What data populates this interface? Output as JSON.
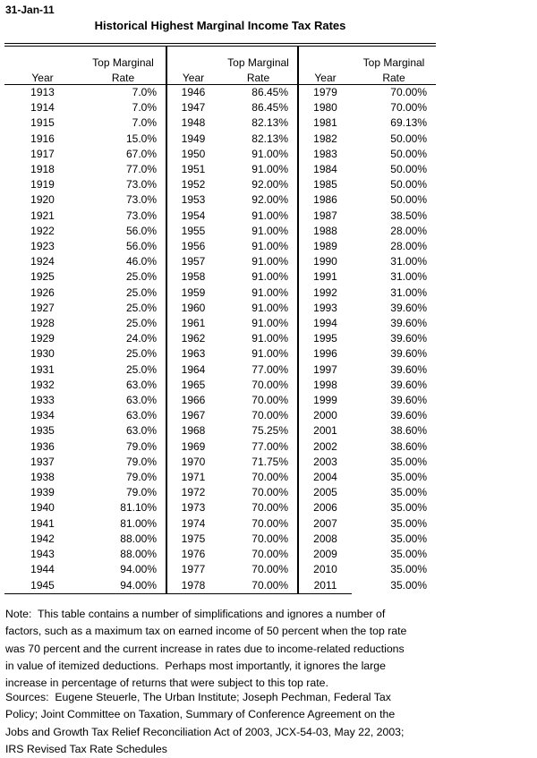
{
  "page": {
    "date": "31-Jan-11",
    "title": "Historical Highest Marginal Income Tax Rates"
  },
  "table": {
    "header_top_marginal": "Top Marginal",
    "header_year": "Year",
    "header_rate": "Rate",
    "groups": [
      {
        "rows": [
          [
            "1913",
            "7.0%"
          ],
          [
            "1914",
            "7.0%"
          ],
          [
            "1915",
            "7.0%"
          ],
          [
            "1916",
            "15.0%"
          ],
          [
            "1917",
            "67.0%"
          ],
          [
            "1918",
            "77.0%"
          ],
          [
            "1919",
            "73.0%"
          ],
          [
            "1920",
            "73.0%"
          ],
          [
            "1921",
            "73.0%"
          ],
          [
            "1922",
            "56.0%"
          ],
          [
            "1923",
            "56.0%"
          ],
          [
            "1924",
            "46.0%"
          ],
          [
            "1925",
            "25.0%"
          ],
          [
            "1926",
            "25.0%"
          ],
          [
            "1927",
            "25.0%"
          ],
          [
            "1928",
            "25.0%"
          ],
          [
            "1929",
            "24.0%"
          ],
          [
            "1930",
            "25.0%"
          ],
          [
            "1931",
            "25.0%"
          ],
          [
            "1932",
            "63.0%"
          ],
          [
            "1933",
            "63.0%"
          ],
          [
            "1934",
            "63.0%"
          ],
          [
            "1935",
            "63.0%"
          ],
          [
            "1936",
            "79.0%"
          ],
          [
            "1937",
            "79.0%"
          ],
          [
            "1938",
            "79.0%"
          ],
          [
            "1939",
            "79.0%"
          ],
          [
            "1940",
            "81.10%"
          ],
          [
            "1941",
            "81.00%"
          ],
          [
            "1942",
            "88.00%"
          ],
          [
            "1943",
            "88.00%"
          ],
          [
            "1944",
            "94.00%"
          ],
          [
            "1945",
            "94.00%"
          ]
        ]
      },
      {
        "rows": [
          [
            "1946",
            "86.45%"
          ],
          [
            "1947",
            "86.45%"
          ],
          [
            "1948",
            "82.13%"
          ],
          [
            "1949",
            "82.13%"
          ],
          [
            "1950",
            "91.00%"
          ],
          [
            "1951",
            "91.00%"
          ],
          [
            "1952",
            "92.00%"
          ],
          [
            "1953",
            "92.00%"
          ],
          [
            "1954",
            "91.00%"
          ],
          [
            "1955",
            "91.00%"
          ],
          [
            "1956",
            "91.00%"
          ],
          [
            "1957",
            "91.00%"
          ],
          [
            "1958",
            "91.00%"
          ],
          [
            "1959",
            "91.00%"
          ],
          [
            "1960",
            "91.00%"
          ],
          [
            "1961",
            "91.00%"
          ],
          [
            "1962",
            "91.00%"
          ],
          [
            "1963",
            "91.00%"
          ],
          [
            "1964",
            "77.00%"
          ],
          [
            "1965",
            "70.00%"
          ],
          [
            "1966",
            "70.00%"
          ],
          [
            "1967",
            "70.00%"
          ],
          [
            "1968",
            "75.25%"
          ],
          [
            "1969",
            "77.00%"
          ],
          [
            "1970",
            "71.75%"
          ],
          [
            "1971",
            "70.00%"
          ],
          [
            "1972",
            "70.00%"
          ],
          [
            "1973",
            "70.00%"
          ],
          [
            "1974",
            "70.00%"
          ],
          [
            "1975",
            "70.00%"
          ],
          [
            "1976",
            "70.00%"
          ],
          [
            "1977",
            "70.00%"
          ],
          [
            "1978",
            "70.00%"
          ]
        ]
      },
      {
        "rows": [
          [
            "1979",
            "70.00%"
          ],
          [
            "1980",
            "70.00%"
          ],
          [
            "1981",
            "69.13%"
          ],
          [
            "1982",
            "50.00%"
          ],
          [
            "1983",
            "50.00%"
          ],
          [
            "1984",
            "50.00%"
          ],
          [
            "1985",
            "50.00%"
          ],
          [
            "1986",
            "50.00%"
          ],
          [
            "1987",
            "38.50%"
          ],
          [
            "1988",
            "28.00%"
          ],
          [
            "1989",
            "28.00%"
          ],
          [
            "1990",
            "31.00%"
          ],
          [
            "1991",
            "31.00%"
          ],
          [
            "1992",
            "31.00%"
          ],
          [
            "1993",
            "39.60%"
          ],
          [
            "1994",
            "39.60%"
          ],
          [
            "1995",
            "39.60%"
          ],
          [
            "1996",
            "39.60%"
          ],
          [
            "1997",
            "39.60%"
          ],
          [
            "1998",
            "39.60%"
          ],
          [
            "1999",
            "39.60%"
          ],
          [
            "2000",
            "39.60%"
          ],
          [
            "2001",
            "38.60%"
          ],
          [
            "2002",
            "38.60%"
          ],
          [
            "2003",
            "35.00%"
          ],
          [
            "2004",
            "35.00%"
          ],
          [
            "2005",
            "35.00%"
          ],
          [
            "2006",
            "35.00%"
          ],
          [
            "2007",
            "35.00%"
          ],
          [
            "2008",
            "35.00%"
          ],
          [
            "2009",
            "35.00%"
          ],
          [
            "2010",
            "35.00%"
          ],
          [
            "2011",
            "35.00%"
          ]
        ]
      }
    ]
  },
  "note": "Note:  This table contains a number of simplifications and ignores a number of\nfactors, such as a maximum tax on earned income of 50 percent when the top rate\nwas 70 percent and the current increase in rates due to income-related reductions\nin value of itemized deductions.  Perhaps most importantly, it ignores the large\nincrease in percentage of returns that were subject to this top rate.",
  "sources": "Sources:  Eugene Steuerle, The Urban Institute; Joseph Pechman, Federal Tax\nPolicy; Joint Committee on Taxation, Summary of Conference Agreement on the\nJobs and Growth Tax Relief Reconciliation Act of 2003, JCX-54-03, May 22, 2003;\nIRS Revised Tax Rate Schedules"
}
